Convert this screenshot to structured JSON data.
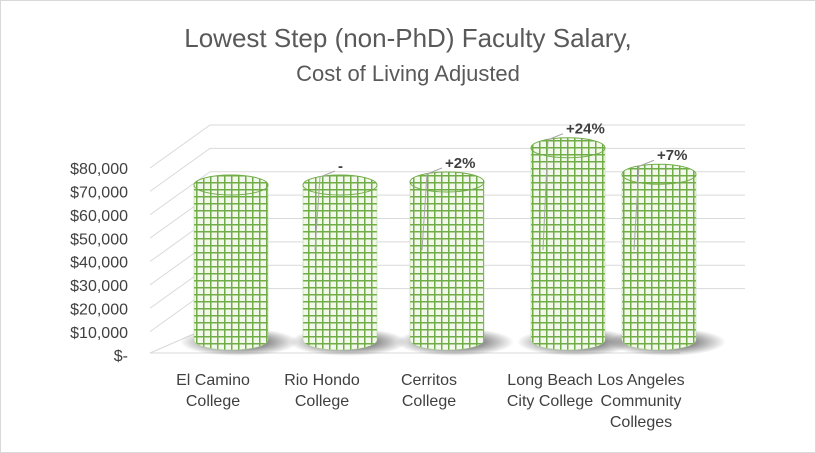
{
  "chart_data": {
    "type": "bar3d",
    "title": "Lowest Step (non-PhD) Faculty Salary,",
    "subtitle": "Cost of Living Adjusted",
    "categories": [
      "El Camino College",
      "Rio Hondo College",
      "Cerritos College",
      "Long Beach City College",
      "Los Angeles Community Colleges"
    ],
    "values": [
      62000,
      62000,
      63200,
      76900,
      66300
    ],
    "value_labels": [
      null,
      "-",
      "+2%",
      "+24%",
      "+7%"
    ],
    "color": "#70ad47",
    "ylim": [
      0,
      80000
    ],
    "yticks": [
      {
        "value": 0,
        "label": "$-"
      },
      {
        "value": 10000,
        "label": "$10,000"
      },
      {
        "value": 20000,
        "label": "$20,000"
      },
      {
        "value": 30000,
        "label": "$30,000"
      },
      {
        "value": 40000,
        "label": "$40,000"
      },
      {
        "value": 50000,
        "label": "$50,000"
      },
      {
        "value": 60000,
        "label": "$60,000"
      },
      {
        "value": 70000,
        "label": "$70,000"
      },
      {
        "value": 80000,
        "label": "$80,000"
      }
    ],
    "grid": true
  }
}
